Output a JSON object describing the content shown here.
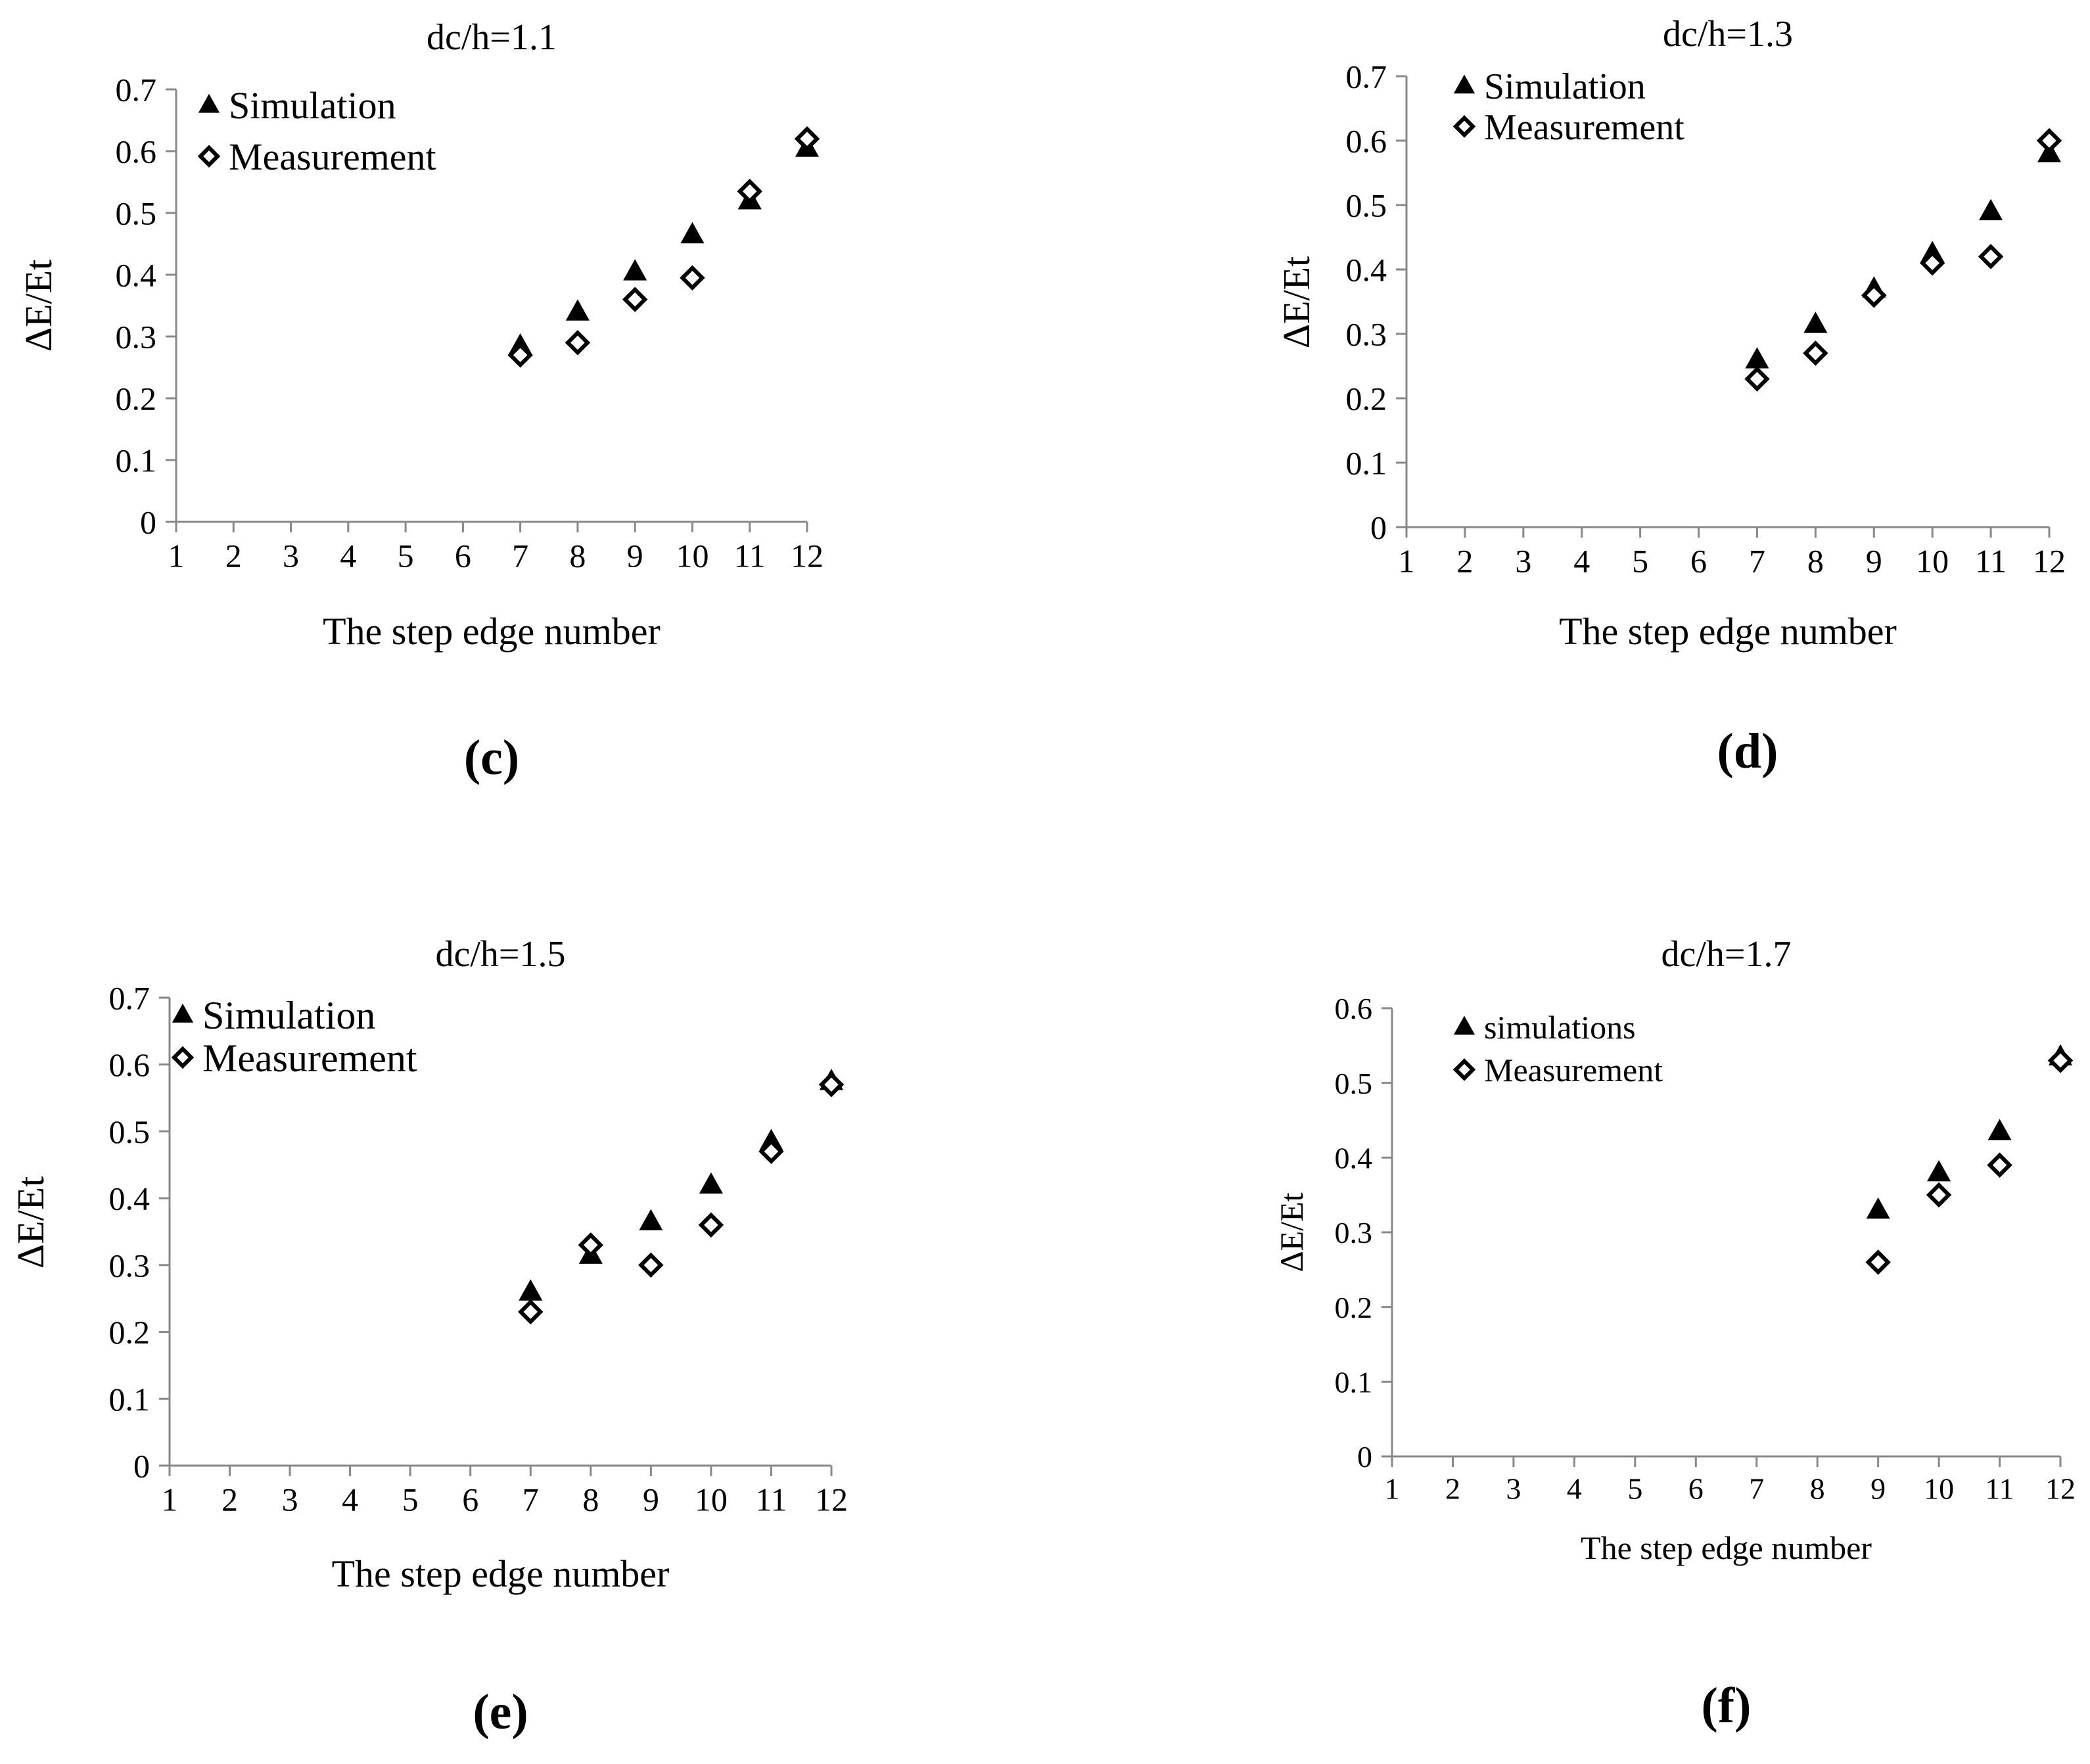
{
  "chart_data": [
    {
      "panel": "c",
      "type": "scatter",
      "title": "dc/h=1.1",
      "caption": "(c)",
      "xlabel": "The step edge number",
      "ylabel": "ΔE/Et",
      "xlim": [
        1,
        12
      ],
      "ylim": [
        0,
        0.7
      ],
      "x_ticks": [
        1,
        2,
        3,
        4,
        5,
        6,
        7,
        8,
        9,
        10,
        11,
        12
      ],
      "y_ticks": [
        0,
        0.1,
        0.2,
        0.3,
        0.4,
        0.5,
        0.6,
        0.7
      ],
      "legend_position": "top-left",
      "series": [
        {
          "name": "Simulation",
          "marker": "triangle-filled",
          "x": [
            7,
            8,
            9,
            10,
            11,
            12
          ],
          "y": [
            0.285,
            0.34,
            0.405,
            0.465,
            0.52,
            0.605
          ]
        },
        {
          "name": "Measurement",
          "marker": "diamond-open",
          "x": [
            7,
            8,
            9,
            10,
            11,
            12
          ],
          "y": [
            0.27,
            0.29,
            0.36,
            0.395,
            0.535,
            0.62
          ]
        }
      ]
    },
    {
      "panel": "d",
      "type": "scatter",
      "title": "dc/h=1.3",
      "caption": "(d)",
      "xlabel": "The step edge number",
      "ylabel": "ΔE/Et",
      "xlim": [
        1,
        12
      ],
      "ylim": [
        0,
        0.7
      ],
      "x_ticks": [
        1,
        2,
        3,
        4,
        5,
        6,
        7,
        8,
        9,
        10,
        11,
        12
      ],
      "y_ticks": [
        0,
        0.1,
        0.2,
        0.3,
        0.4,
        0.5,
        0.6,
        0.7
      ],
      "legend_position": "top-left",
      "series": [
        {
          "name": "Simulation",
          "marker": "triangle-filled",
          "x": [
            7,
            8,
            9,
            10,
            11,
            12
          ],
          "y": [
            0.26,
            0.315,
            0.37,
            0.425,
            0.49,
            0.58
          ]
        },
        {
          "name": "Measurement",
          "marker": "diamond-open",
          "x": [
            7,
            8,
            9,
            10,
            11,
            12
          ],
          "y": [
            0.23,
            0.27,
            0.36,
            0.41,
            0.42,
            0.6
          ]
        }
      ]
    },
    {
      "panel": "e",
      "type": "scatter",
      "title": "dc/h=1.5",
      "caption": "(e)",
      "xlabel": "The step edge number",
      "ylabel": "ΔE/Et",
      "xlim": [
        1,
        12
      ],
      "ylim": [
        0,
        0.7
      ],
      "x_ticks": [
        1,
        2,
        3,
        4,
        5,
        6,
        7,
        8,
        9,
        10,
        11,
        12
      ],
      "y_ticks": [
        0,
        0.1,
        0.2,
        0.3,
        0.4,
        0.5,
        0.6,
        0.7
      ],
      "legend_position": "top-left",
      "series": [
        {
          "name": "Simulation",
          "marker": "triangle-filled",
          "x": [
            7,
            8,
            9,
            10,
            11,
            12
          ],
          "y": [
            0.26,
            0.315,
            0.365,
            0.42,
            0.485,
            0.575
          ]
        },
        {
          "name": "Measurement",
          "marker": "diamond-open",
          "x": [
            7,
            8,
            9,
            10,
            11,
            12
          ],
          "y": [
            0.23,
            0.33,
            0.3,
            0.36,
            0.47,
            0.57
          ]
        }
      ]
    },
    {
      "panel": "f",
      "type": "scatter",
      "title": "dc/h=1.7",
      "caption": "(f)",
      "xlabel": "The step edge number",
      "ylabel": "ΔE/Et",
      "xlim": [
        1,
        12
      ],
      "ylim": [
        0,
        0.6
      ],
      "x_ticks": [
        1,
        2,
        3,
        4,
        5,
        6,
        7,
        8,
        9,
        10,
        11,
        12
      ],
      "y_ticks": [
        0,
        0.1,
        0.2,
        0.3,
        0.4,
        0.5,
        0.6
      ],
      "legend_position": "top-left",
      "series": [
        {
          "name": "simulations",
          "marker": "triangle-filled",
          "x": [
            9,
            10,
            11,
            12
          ],
          "y": [
            0.33,
            0.38,
            0.435,
            0.535
          ]
        },
        {
          "name": "Measurement",
          "marker": "diamond-open",
          "x": [
            9,
            10,
            11,
            12
          ],
          "y": [
            0.26,
            0.35,
            0.39,
            0.53
          ]
        }
      ]
    }
  ]
}
